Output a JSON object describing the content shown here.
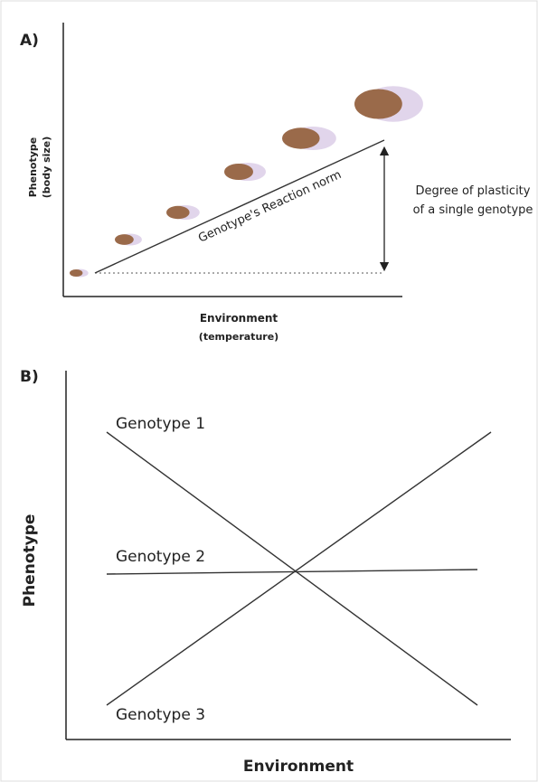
{
  "panel_a": {
    "label": "A)",
    "y_axis_title": "Phenotype",
    "y_axis_subtitle": "(body size)",
    "x_axis_title": "Environment",
    "x_axis_subtitle": "(temperature)",
    "line_label": "Genotype's Reaction norm",
    "annotation": [
      "Degree of plasticity",
      "of a single genotype"
    ]
  },
  "panel_b": {
    "label": "B)",
    "y_axis_title": "Phenotype",
    "x_axis_title": "Environment",
    "lines": [
      {
        "label": "Genotype 1"
      },
      {
        "label": "Genotype 2"
      },
      {
        "label": "Genotype 3"
      }
    ]
  }
}
